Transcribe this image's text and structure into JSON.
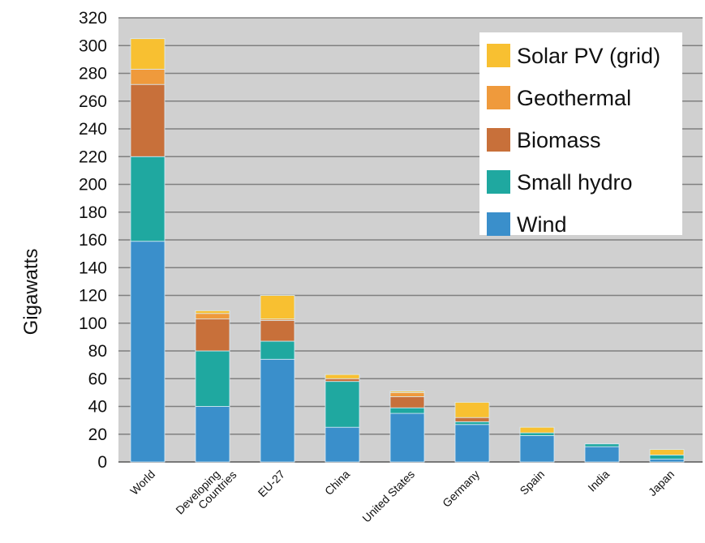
{
  "chart_data": {
    "type": "bar",
    "stacked": true,
    "title": "",
    "xlabel": "",
    "ylabel": "Gigawatts",
    "ylim": [
      0,
      320
    ],
    "yticks": [
      0,
      20,
      40,
      60,
      80,
      100,
      120,
      140,
      160,
      180,
      200,
      220,
      240,
      260,
      280,
      300,
      320
    ],
    "grid": true,
    "legend_position": "top-right",
    "categories": [
      "World",
      "Developing Countries",
      "EU-27",
      "China",
      "United States",
      "Germany",
      "Spain",
      "India",
      "Japan"
    ],
    "series": [
      {
        "name": "Wind",
        "color": "#3a8fcb",
        "values": [
          159,
          40,
          74,
          25,
          35,
          27,
          19,
          11,
          2
        ]
      },
      {
        "name": "Small hydro",
        "color": "#1fa8a0",
        "values": [
          61,
          40,
          13,
          33,
          4,
          2,
          2,
          2,
          3
        ]
      },
      {
        "name": "Biomass",
        "color": "#c8703a",
        "values": [
          52,
          23,
          15,
          2,
          8,
          3,
          0,
          0,
          0
        ]
      },
      {
        "name": "Geothermal",
        "color": "#ef9a3c",
        "values": [
          11,
          4,
          1,
          0,
          3,
          0,
          0,
          0,
          0
        ]
      },
      {
        "name": "Solar PV (grid)",
        "color": "#f8c031",
        "values": [
          22,
          2,
          17,
          3,
          1,
          11,
          4,
          0,
          4
        ]
      }
    ],
    "legend_order": [
      "Solar PV (grid)",
      "Geothermal",
      "Biomass",
      "Small hydro",
      "Wind"
    ]
  }
}
